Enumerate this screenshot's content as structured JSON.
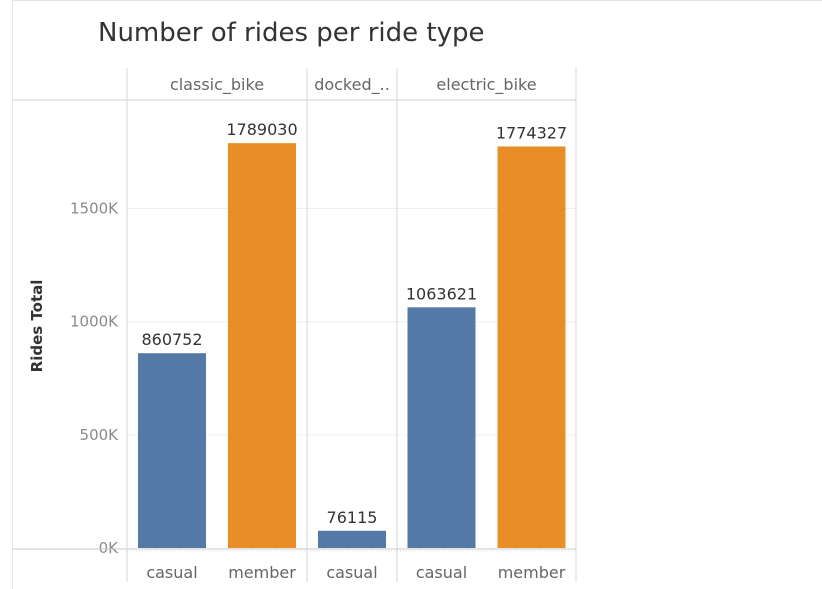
{
  "chart_data": {
    "type": "bar",
    "title": "Number of rides per ride type",
    "ylabel": "Rides Total",
    "xlabel": "",
    "ylim": [
      0,
      1900000
    ],
    "yticks": [
      {
        "value": 0,
        "label": "0K"
      },
      {
        "value": 500000,
        "label": "500K"
      },
      {
        "value": 1000000,
        "label": "1000K"
      },
      {
        "value": 1500000,
        "label": "1500K"
      }
    ],
    "grid": true,
    "panels": [
      {
        "name": "classic_bike",
        "header": "classic_bike",
        "bars": [
          {
            "category": "casual",
            "value": 860752,
            "label": "860752"
          },
          {
            "category": "member",
            "value": 1789030,
            "label": "1789030"
          }
        ]
      },
      {
        "name": "docked_bike",
        "header": "docked_..",
        "bars": [
          {
            "category": "casual",
            "value": 76115,
            "label": "76115"
          }
        ]
      },
      {
        "name": "electric_bike",
        "header": "electric_bike",
        "bars": [
          {
            "category": "casual",
            "value": 1063621,
            "label": "1063621"
          },
          {
            "category": "member",
            "value": 1774327,
            "label": "1774327"
          }
        ]
      }
    ],
    "colors": {
      "casual": "#5479a6",
      "member": "#e98e26"
    }
  }
}
